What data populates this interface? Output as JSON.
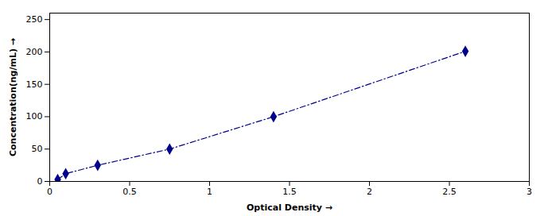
{
  "chart_data": {
    "type": "line",
    "x": [
      0.05,
      0.1,
      0.3,
      0.75,
      1.4,
      2.6
    ],
    "values": [
      3,
      12,
      25,
      50,
      100,
      201
    ],
    "color": "#00008B",
    "marker": "diamond",
    "line_style": "dashdot",
    "xlabel": "Optical Density",
    "ylabel": "Concentration(ng/mL)",
    "xlim": [
      0,
      3
    ],
    "ylim": [
      0,
      260
    ],
    "xticks": [
      0,
      0.5,
      1,
      1.5,
      2,
      2.5,
      3
    ],
    "yticks": [
      0,
      50,
      100,
      150,
      200,
      250
    ],
    "grid": false
  }
}
